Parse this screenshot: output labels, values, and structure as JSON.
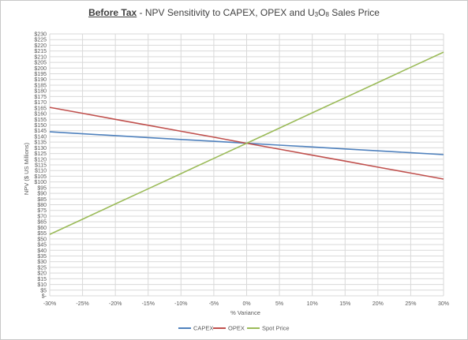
{
  "chart_data": {
    "type": "line",
    "title_bold": "Before Tax",
    "title_rest": " - NPV Sensitivity to CAPEX, OPEX and U",
    "title_sub1": "3",
    "title_mid": "O",
    "title_sub2": "8",
    "title_end": " Sales Price",
    "xlabel": "% Variance",
    "ylabel": "NPV ($ US Millions)",
    "x": [
      -30,
      -25,
      -20,
      -15,
      -10,
      -5,
      0,
      5,
      10,
      15,
      20,
      25,
      30
    ],
    "x_tick_labels": [
      "-30%",
      "-25%",
      "-20%",
      "-15%",
      "-10%",
      "-5%",
      "0%",
      "5%",
      "10%",
      "15%",
      "20%",
      "25%",
      "30%"
    ],
    "y_ticks": [
      0,
      5,
      10,
      15,
      20,
      25,
      30,
      35,
      40,
      45,
      50,
      55,
      60,
      65,
      70,
      75,
      80,
      85,
      90,
      95,
      100,
      105,
      110,
      115,
      120,
      125,
      130,
      135,
      140,
      145,
      150,
      155,
      160,
      165,
      170,
      175,
      180,
      185,
      190,
      195,
      200,
      205,
      210,
      215,
      220,
      225,
      230
    ],
    "y_tick_labels": [
      "$-",
      "$5",
      "$10",
      "$15",
      "$20",
      "$25",
      "$30",
      "$35",
      "$40",
      "$45",
      "$50",
      "$55",
      "$60",
      "$65",
      "$70",
      "$75",
      "$80",
      "$85",
      "$90",
      "$95",
      "$100",
      "$105",
      "$110",
      "$115",
      "$120",
      "$125",
      "$130",
      "$135",
      "$140",
      "$145",
      "$150",
      "$155",
      "$160",
      "$165",
      "$170",
      "$175",
      "$180",
      "$185",
      "$190",
      "$195",
      "$200",
      "$205",
      "$210",
      "$215",
      "$220",
      "$225",
      "$230"
    ],
    "ylim": [
      0,
      230
    ],
    "xlim": [
      -30,
      30
    ],
    "grid": true,
    "legend_position": "bottom",
    "series": [
      {
        "name": "CAPEX",
        "color": "#4f81bd",
        "values": [
          144,
          142.3,
          140.7,
          139,
          137.3,
          135.7,
          134,
          132.3,
          130.7,
          129,
          127.3,
          125.7,
          124
        ]
      },
      {
        "name": "OPEX",
        "color": "#c0504d",
        "values": [
          165.5,
          160.3,
          155,
          149.8,
          144.5,
          139.3,
          134,
          128.8,
          123.5,
          118.3,
          113,
          107.8,
          102.5
        ]
      },
      {
        "name": "Spot Price",
        "color": "#9bbb59",
        "values": [
          54,
          67.3,
          80.7,
          94,
          107.3,
          120.7,
          134,
          147.3,
          160.7,
          174,
          187.3,
          200.7,
          214
        ]
      }
    ]
  }
}
